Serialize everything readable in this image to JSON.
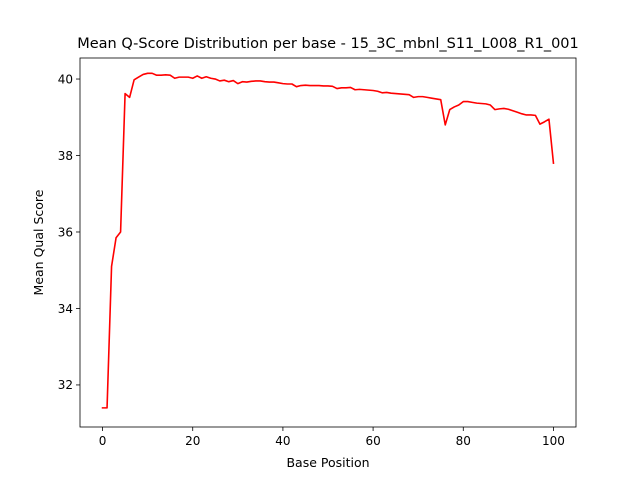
{
  "chart_data": {
    "type": "line",
    "title": "Mean Q-Score Distribution per base - 15_3C_mbnl_S11_L008_R1_001",
    "xlabel": "Base Position",
    "ylabel": "Mean Qual Score",
    "xlim": [
      -5,
      105
    ],
    "ylim": [
      30.9,
      40.55
    ],
    "xticks": [
      0,
      20,
      40,
      60,
      80,
      100
    ],
    "yticks": [
      32,
      34,
      36,
      38,
      40
    ],
    "grid": false,
    "legend": "none",
    "series": [
      {
        "color": "#ff0000",
        "x": [
          0,
          1,
          2,
          3,
          4,
          5,
          6,
          7,
          8,
          9,
          10,
          11,
          12,
          13,
          14,
          15,
          16,
          17,
          18,
          19,
          20,
          21,
          22,
          23,
          24,
          25,
          26,
          27,
          28,
          29,
          30,
          31,
          32,
          33,
          34,
          35,
          36,
          37,
          38,
          39,
          40,
          41,
          42,
          43,
          44,
          45,
          46,
          47,
          48,
          49,
          50,
          51,
          52,
          53,
          54,
          55,
          56,
          57,
          58,
          59,
          60,
          61,
          62,
          63,
          64,
          65,
          66,
          67,
          68,
          69,
          70,
          71,
          72,
          73,
          74,
          75,
          76,
          77,
          78,
          79,
          80,
          81,
          82,
          83,
          84,
          85,
          86,
          87,
          88,
          89,
          90,
          91,
          92,
          93,
          94,
          95,
          96,
          97,
          98,
          99,
          100
        ],
        "y": [
          31.4,
          31.4,
          35.1,
          35.85,
          36.0,
          39.62,
          39.52,
          39.98,
          40.05,
          40.12,
          40.15,
          40.15,
          40.1,
          40.1,
          40.11,
          40.1,
          40.02,
          40.05,
          40.05,
          40.05,
          40.02,
          40.08,
          40.02,
          40.06,
          40.02,
          40.0,
          39.95,
          39.97,
          39.93,
          39.96,
          39.88,
          39.93,
          39.92,
          39.94,
          39.95,
          39.95,
          39.93,
          39.92,
          39.92,
          39.9,
          39.88,
          39.87,
          39.87,
          39.8,
          39.83,
          39.84,
          39.83,
          39.83,
          39.83,
          39.82,
          39.82,
          39.81,
          39.75,
          39.77,
          39.77,
          39.78,
          39.72,
          39.73,
          39.72,
          39.71,
          39.7,
          39.68,
          39.64,
          39.65,
          39.63,
          39.62,
          39.61,
          39.6,
          39.59,
          39.52,
          39.54,
          39.54,
          39.52,
          39.5,
          39.48,
          39.46,
          38.8,
          39.2,
          39.27,
          39.32,
          39.41,
          39.41,
          39.39,
          39.37,
          39.36,
          39.35,
          39.32,
          39.2,
          39.22,
          39.23,
          39.21,
          39.17,
          39.13,
          39.09,
          39.06,
          39.06,
          39.05,
          38.82,
          38.88,
          38.95,
          37.8
        ]
      }
    ]
  }
}
